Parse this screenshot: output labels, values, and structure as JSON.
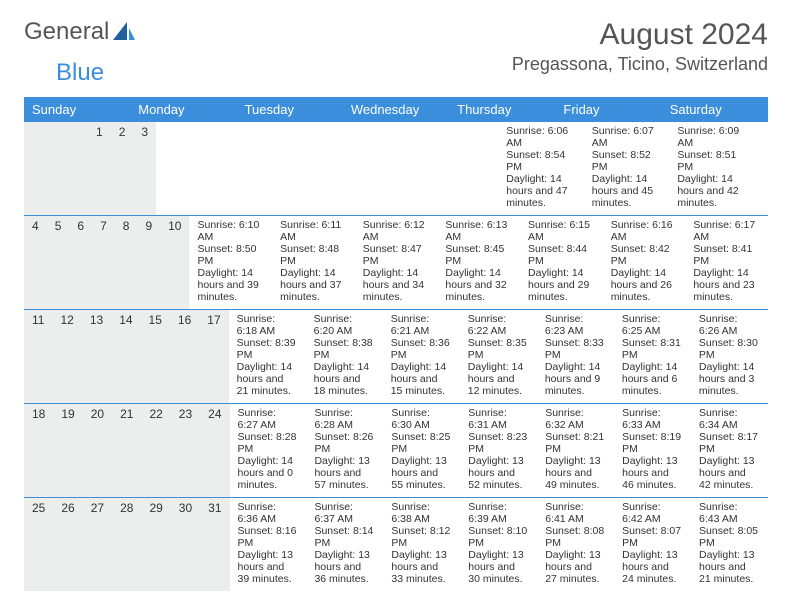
{
  "brand": {
    "text1": "General",
    "text2": "Blue"
  },
  "title": "August 2024",
  "location": "Pregassona, Ticino, Switzerland",
  "colors": {
    "header_bg": "#3a8edb",
    "header_fg": "#ffffff",
    "daynum_bg": "#eceded",
    "border": "#3a8edb"
  },
  "weekdays": [
    "Sunday",
    "Monday",
    "Tuesday",
    "Wednesday",
    "Thursday",
    "Friday",
    "Saturday"
  ],
  "weeks": [
    [
      null,
      null,
      null,
      null,
      {
        "d": "1",
        "sr": "6:06 AM",
        "ss": "8:54 PM",
        "dl": "14 hours and 47 minutes."
      },
      {
        "d": "2",
        "sr": "6:07 AM",
        "ss": "8:52 PM",
        "dl": "14 hours and 45 minutes."
      },
      {
        "d": "3",
        "sr": "6:09 AM",
        "ss": "8:51 PM",
        "dl": "14 hours and 42 minutes."
      }
    ],
    [
      {
        "d": "4",
        "sr": "6:10 AM",
        "ss": "8:50 PM",
        "dl": "14 hours and 39 minutes."
      },
      {
        "d": "5",
        "sr": "6:11 AM",
        "ss": "8:48 PM",
        "dl": "14 hours and 37 minutes."
      },
      {
        "d": "6",
        "sr": "6:12 AM",
        "ss": "8:47 PM",
        "dl": "14 hours and 34 minutes."
      },
      {
        "d": "7",
        "sr": "6:13 AM",
        "ss": "8:45 PM",
        "dl": "14 hours and 32 minutes."
      },
      {
        "d": "8",
        "sr": "6:15 AM",
        "ss": "8:44 PM",
        "dl": "14 hours and 29 minutes."
      },
      {
        "d": "9",
        "sr": "6:16 AM",
        "ss": "8:42 PM",
        "dl": "14 hours and 26 minutes."
      },
      {
        "d": "10",
        "sr": "6:17 AM",
        "ss": "8:41 PM",
        "dl": "14 hours and 23 minutes."
      }
    ],
    [
      {
        "d": "11",
        "sr": "6:18 AM",
        "ss": "8:39 PM",
        "dl": "14 hours and 21 minutes."
      },
      {
        "d": "12",
        "sr": "6:20 AM",
        "ss": "8:38 PM",
        "dl": "14 hours and 18 minutes."
      },
      {
        "d": "13",
        "sr": "6:21 AM",
        "ss": "8:36 PM",
        "dl": "14 hours and 15 minutes."
      },
      {
        "d": "14",
        "sr": "6:22 AM",
        "ss": "8:35 PM",
        "dl": "14 hours and 12 minutes."
      },
      {
        "d": "15",
        "sr": "6:23 AM",
        "ss": "8:33 PM",
        "dl": "14 hours and 9 minutes."
      },
      {
        "d": "16",
        "sr": "6:25 AM",
        "ss": "8:31 PM",
        "dl": "14 hours and 6 minutes."
      },
      {
        "d": "17",
        "sr": "6:26 AM",
        "ss": "8:30 PM",
        "dl": "14 hours and 3 minutes."
      }
    ],
    [
      {
        "d": "18",
        "sr": "6:27 AM",
        "ss": "8:28 PM",
        "dl": "14 hours and 0 minutes."
      },
      {
        "d": "19",
        "sr": "6:28 AM",
        "ss": "8:26 PM",
        "dl": "13 hours and 57 minutes."
      },
      {
        "d": "20",
        "sr": "6:30 AM",
        "ss": "8:25 PM",
        "dl": "13 hours and 55 minutes."
      },
      {
        "d": "21",
        "sr": "6:31 AM",
        "ss": "8:23 PM",
        "dl": "13 hours and 52 minutes."
      },
      {
        "d": "22",
        "sr": "6:32 AM",
        "ss": "8:21 PM",
        "dl": "13 hours and 49 minutes."
      },
      {
        "d": "23",
        "sr": "6:33 AM",
        "ss": "8:19 PM",
        "dl": "13 hours and 46 minutes."
      },
      {
        "d": "24",
        "sr": "6:34 AM",
        "ss": "8:17 PM",
        "dl": "13 hours and 42 minutes."
      }
    ],
    [
      {
        "d": "25",
        "sr": "6:36 AM",
        "ss": "8:16 PM",
        "dl": "13 hours and 39 minutes."
      },
      {
        "d": "26",
        "sr": "6:37 AM",
        "ss": "8:14 PM",
        "dl": "13 hours and 36 minutes."
      },
      {
        "d": "27",
        "sr": "6:38 AM",
        "ss": "8:12 PM",
        "dl": "13 hours and 33 minutes."
      },
      {
        "d": "28",
        "sr": "6:39 AM",
        "ss": "8:10 PM",
        "dl": "13 hours and 30 minutes."
      },
      {
        "d": "29",
        "sr": "6:41 AM",
        "ss": "8:08 PM",
        "dl": "13 hours and 27 minutes."
      },
      {
        "d": "30",
        "sr": "6:42 AM",
        "ss": "8:07 PM",
        "dl": "13 hours and 24 minutes."
      },
      {
        "d": "31",
        "sr": "6:43 AM",
        "ss": "8:05 PM",
        "dl": "13 hours and 21 minutes."
      }
    ]
  ],
  "labels": {
    "sunrise": "Sunrise:",
    "sunset": "Sunset:",
    "daylight": "Daylight:"
  }
}
